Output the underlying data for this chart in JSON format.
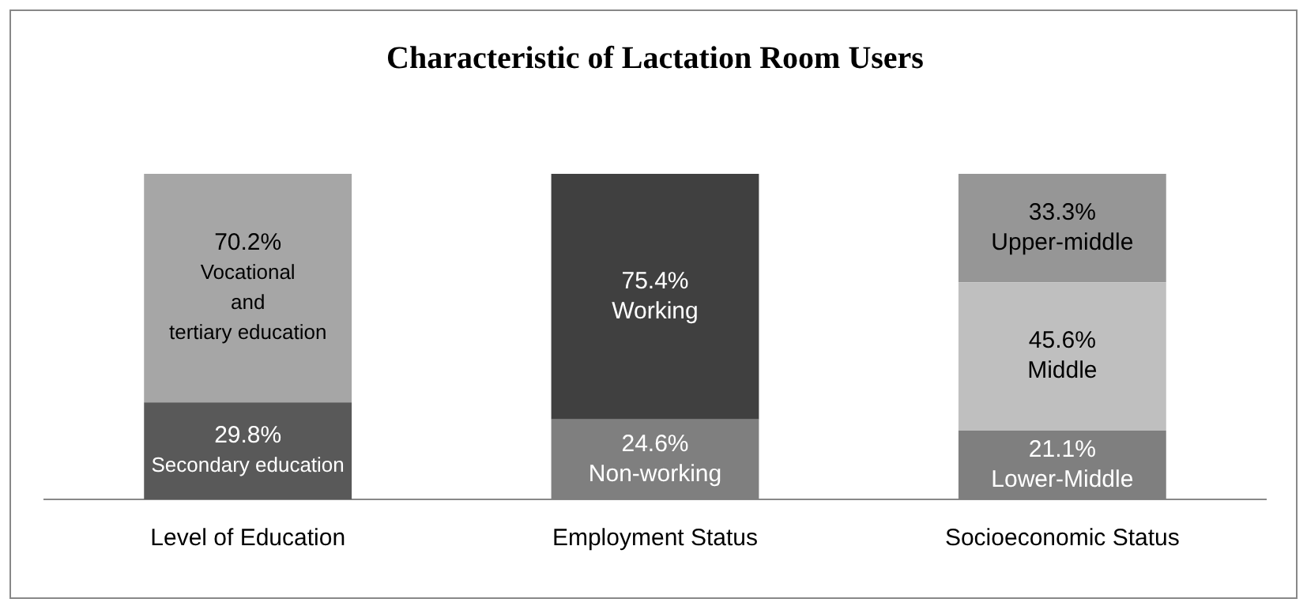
{
  "chart_data": {
    "type": "bar",
    "title": "Characteristic of Lactation Room Users",
    "categories": [
      "Level of Education",
      "Employment Status",
      "Socioeconomic Status"
    ],
    "stacked": true,
    "ylim": [
      0,
      100
    ],
    "tick_labels": "x",
    "grid": false,
    "legend": false,
    "series": [
      {
        "colors": [
          "#595959",
          "#7f7f7f",
          "#7f7f7f"
        ],
        "values": [
          29.8,
          24.6,
          21.1
        ],
        "value_labels": [
          "29.8%\nSecondary education",
          "24.6%\nNon-working",
          "21.1%\nLower-Middle"
        ]
      },
      {
        "colors": [
          "#a6a6a6",
          "#404040",
          "#bfbfbf"
        ],
        "values": [
          70.2,
          75.4,
          45.6
        ],
        "value_labels": [
          "70.2%\nVocational\nand\ntertiary education",
          "75.4%\nWorking",
          "45.6%\nMiddle"
        ]
      },
      {
        "colors": [
          null,
          null,
          "#969696"
        ],
        "values": [
          null,
          null,
          33.3
        ],
        "value_labels": [
          null,
          null,
          "33.3%\nUpper-middle"
        ]
      }
    ]
  }
}
